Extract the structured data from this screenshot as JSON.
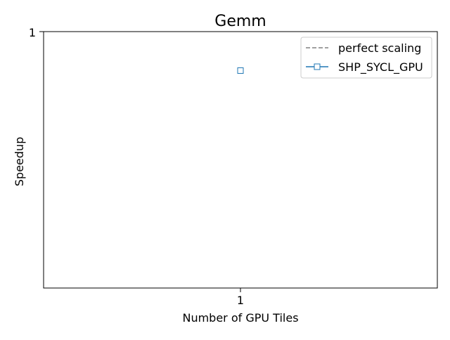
{
  "chart_data": {
    "type": "line",
    "title": "Gemm",
    "xlabel": "Number of GPU Tiles",
    "ylabel": "Speedup",
    "x_scale": "log",
    "y_scale": "log",
    "x_ticks": [
      "1"
    ],
    "y_ticks": [
      "1"
    ],
    "grid": false,
    "legend_position": "top-right",
    "series": [
      {
        "name": "perfect scaling",
        "style": "dashed",
        "color": "#808080",
        "marker": "none",
        "x": [
          1
        ],
        "y": [
          1
        ]
      },
      {
        "name": "SHP_SYCL_GPU",
        "style": "solid",
        "color": "#1f77b4",
        "marker": "square",
        "x": [
          1
        ],
        "y": [
          0.9
        ]
      }
    ]
  }
}
